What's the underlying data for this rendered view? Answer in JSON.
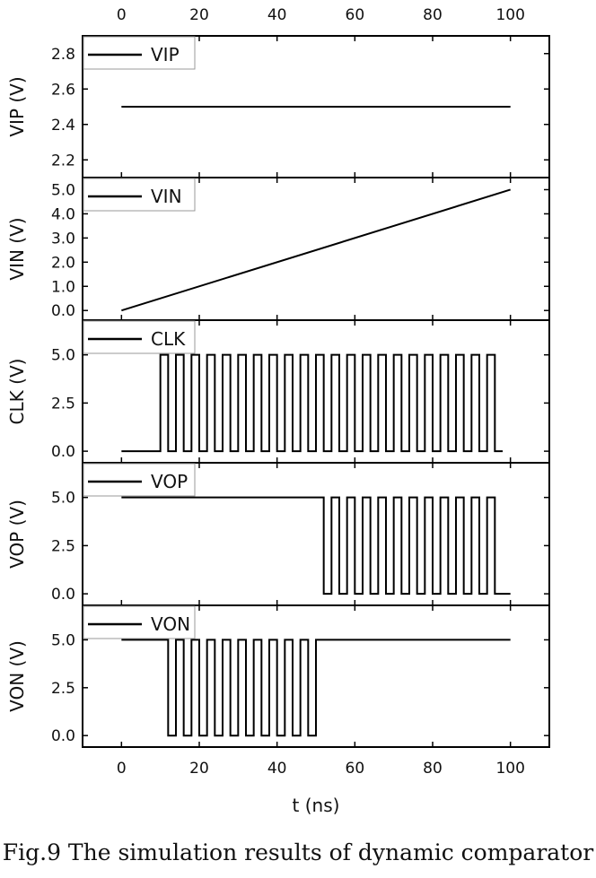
{
  "chart_data": {
    "type": "line",
    "xlabel": "t (ns)",
    "xlim": [
      -10,
      110
    ],
    "xticks": [
      0,
      20,
      40,
      60,
      80,
      100
    ],
    "grid": false,
    "legend_position": "top-left",
    "panels": [
      {
        "id": "vip",
        "ylabel": "VIP (V)",
        "legend": "VIP",
        "ylim": [
          2.1,
          2.9
        ],
        "yticks": [
          2.2,
          2.4,
          2.6,
          2.8
        ],
        "ytick_labels": [
          "2.2",
          "2.4",
          "2.6",
          "2.8"
        ],
        "series": {
          "name": "VIP",
          "x": [
            0,
            100
          ],
          "y": [
            2.5,
            2.5
          ]
        }
      },
      {
        "id": "vin",
        "ylabel": "VIN (V)",
        "legend": "VIN",
        "ylim": [
          -0.4,
          5.5
        ],
        "yticks": [
          0,
          1,
          2,
          3,
          4,
          5
        ],
        "ytick_labels": [
          "0.0",
          "1.0",
          "2.0",
          "3.0",
          "4.0",
          "5.0"
        ],
        "series": {
          "name": "VIN",
          "x": [
            0,
            100
          ],
          "y": [
            0,
            5
          ]
        }
      },
      {
        "id": "clk",
        "ylabel": "CLK (V)",
        "legend": "CLK",
        "ylim": [
          -0.6,
          6.8
        ],
        "yticks": [
          0,
          2.5,
          5
        ],
        "ytick_labels": [
          "0.0",
          "2.5",
          "5.0"
        ],
        "series": {
          "name": "CLK",
          "waveform": "square",
          "low": 0,
          "high": 5,
          "flat_start": 0,
          "flat_value": 0,
          "pulse_start": 10,
          "pulse_end": 98,
          "period": 4,
          "duty": 0.5
        }
      },
      {
        "id": "vop",
        "ylabel": "VOP (V)",
        "legend": "VOP",
        "ylim": [
          -0.6,
          6.8
        ],
        "yticks": [
          0,
          2.5,
          5
        ],
        "ytick_labels": [
          "0.0",
          "2.5",
          "5.0"
        ],
        "series": {
          "name": "VOP",
          "waveform": "square",
          "low": 0,
          "high": 5,
          "flat_start": 0,
          "flat_value": 5,
          "pulse_start": 50,
          "pulse_end": 98,
          "period": 4,
          "duty": 0.5,
          "tail_end": 100
        }
      },
      {
        "id": "von",
        "ylabel": "VON (V)",
        "legend": "VON",
        "ylim": [
          -0.6,
          6.8
        ],
        "yticks": [
          0,
          2.5,
          5
        ],
        "ytick_labels": [
          "0.0",
          "2.5",
          "5.0"
        ],
        "series": {
          "name": "VON",
          "waveform": "square",
          "low": 0,
          "high": 5,
          "flat_start": 0,
          "flat_value": 5,
          "pulse_start": 10,
          "pulse_end": 50,
          "period": 4,
          "duty": 0.5,
          "tail_end": 100,
          "tail_value": 5
        }
      }
    ]
  },
  "caption": "Fig.9 The simulation results of dynamic comparator"
}
